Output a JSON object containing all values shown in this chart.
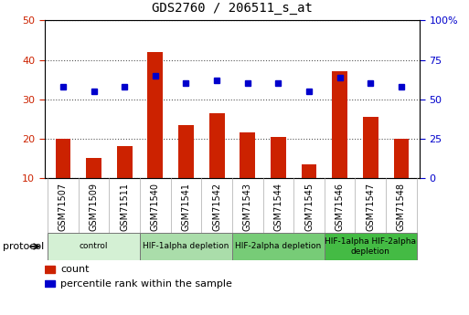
{
  "title": "GDS2760 / 206511_s_at",
  "samples": [
    "GSM71507",
    "GSM71509",
    "GSM71511",
    "GSM71540",
    "GSM71541",
    "GSM71542",
    "GSM71543",
    "GSM71544",
    "GSM71545",
    "GSM71546",
    "GSM71547",
    "GSM71548"
  ],
  "counts": [
    20,
    15,
    18,
    42,
    23.5,
    26.5,
    21.5,
    20.5,
    13.5,
    37,
    25.5,
    20
  ],
  "percentile_ranks": [
    58,
    55,
    58,
    65,
    60,
    62,
    60,
    60,
    55,
    64,
    60,
    58
  ],
  "bar_color": "#cc2200",
  "dot_color": "#0000cc",
  "left_ylim": [
    10,
    50
  ],
  "left_yticks": [
    10,
    20,
    30,
    40,
    50
  ],
  "right_ylim": [
    0,
    100
  ],
  "right_yticks": [
    0,
    25,
    50,
    75,
    100
  ],
  "right_yticklabels": [
    "0",
    "25",
    "50",
    "75",
    "100%"
  ],
  "groups": [
    {
      "label": "control",
      "start": 0,
      "end": 3,
      "color": "#d4f0d4"
    },
    {
      "label": "HIF-1alpha depletion",
      "start": 3,
      "end": 6,
      "color": "#aaddaa"
    },
    {
      "label": "HIF-2alpha depletion",
      "start": 6,
      "end": 9,
      "color": "#77cc77"
    },
    {
      "label": "HIF-1alpha HIF-2alpha\ndepletion",
      "start": 9,
      "end": 12,
      "color": "#44bb44"
    }
  ],
  "protocol_label": "protocol",
  "legend_count_label": "count",
  "legend_percentile_label": "percentile rank within the sample",
  "grid_color": "#555555",
  "tick_label_color_left": "#cc2200",
  "tick_label_color_right": "#0000cc",
  "plot_bg_color": "#ffffff",
  "xticklabel_bg_color": "#cccccc",
  "dot_size": 5,
  "bar_width": 0.5
}
